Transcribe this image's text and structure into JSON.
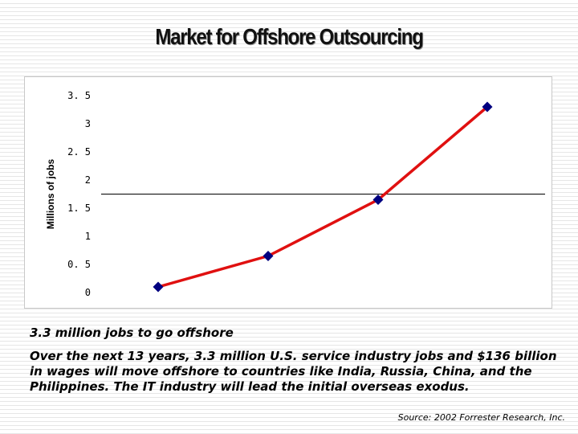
{
  "slide": {
    "title": "Market for Offshore Outsourcing",
    "headline": "3.3 million jobs to go offshore",
    "description": "Over the next 13 years, 3.3 million U.S. service industry jobs and $136 billion in wages will move offshore to countries like India, Russia, China, and the Philippines. The IT industry will lead the initial overseas exodus.",
    "source": "Source: 2002 Forrester Research, Inc."
  },
  "chart_data": {
    "type": "line",
    "ylabel": "Millions of jobs",
    "ylim": [
      0,
      3.5
    ],
    "yticks": [
      0,
      0.5,
      1,
      1.5,
      2,
      2.5,
      3,
      3.5
    ],
    "ytick_labels": [
      "0",
      "0. 5",
      "1",
      "1. 5",
      "2",
      "2. 5",
      "3",
      "3. 5"
    ],
    "grid": false,
    "reference_line": 1.75,
    "series": [
      {
        "values": [
          0.1,
          0.65,
          1.65,
          3.3
        ],
        "line_color": "#e01010",
        "marker_color": "#000080"
      }
    ]
  }
}
